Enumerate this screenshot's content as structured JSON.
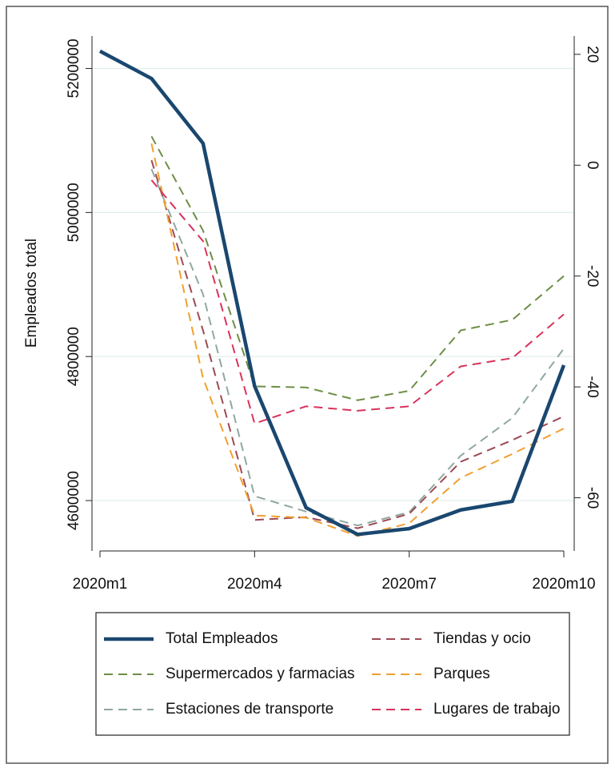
{
  "chart_data": {
    "type": "line",
    "y_label": "Empleados total",
    "categories": [
      "2020m1",
      null,
      null,
      "2020m4",
      null,
      null,
      "2020m7",
      null,
      null,
      "2020m10"
    ],
    "series": [
      {
        "name": "Total Empleados",
        "color": "#1a476f",
        "axis": "y",
        "values": [
          5224000,
          5186000,
          5096000,
          4759000,
          4590000,
          4553000,
          4561000,
          4587000,
          4599000,
          4788000
        ]
      },
      {
        "name": "Supermercados y farmacias",
        "color": "#6e8e47",
        "axis": "y2",
        "values": [
          null,
          5.2,
          -11.8,
          -39.9,
          -40.1,
          -42.4,
          -40.7,
          -29.8,
          -27.9,
          -20.0
        ]
      },
      {
        "name": "Estaciones de transporte",
        "color": "#90a8a0",
        "axis": "y2",
        "values": [
          null,
          -0.7,
          -23.3,
          -59.7,
          -62.5,
          -65.0,
          -62.6,
          -52.4,
          -45.6,
          -33.1
        ]
      },
      {
        "name": "Tiendas y ocio",
        "color": "#9c4a55",
        "axis": "y2",
        "values": [
          null,
          0.9,
          -29.8,
          -64.0,
          -63.5,
          -65.5,
          -62.9,
          -53.5,
          -49.6,
          -45.3
        ]
      },
      {
        "name": "Parques",
        "color": "#f0a030",
        "axis": "y2",
        "values": [
          null,
          3.9,
          -38.4,
          -63.2,
          -63.6,
          -66.9,
          -64.6,
          -56.4,
          -52.1,
          -47.5
        ]
      },
      {
        "name": "Lugares de trabajo",
        "color": "#d8335c",
        "axis": "y2",
        "values": [
          null,
          -2.7,
          -13.7,
          -46.6,
          -43.5,
          -44.3,
          -43.5,
          -36.3,
          -34.8,
          -26.9
        ]
      }
    ],
    "ylim": [
      4530000,
      5245000
    ],
    "yticks": [
      4600000,
      4800000,
      5000000,
      5200000
    ],
    "y2lim": [
      -69.6,
      23.3
    ],
    "y2ticks": [
      -60,
      -40,
      -20,
      0,
      20
    ],
    "grid": true
  }
}
